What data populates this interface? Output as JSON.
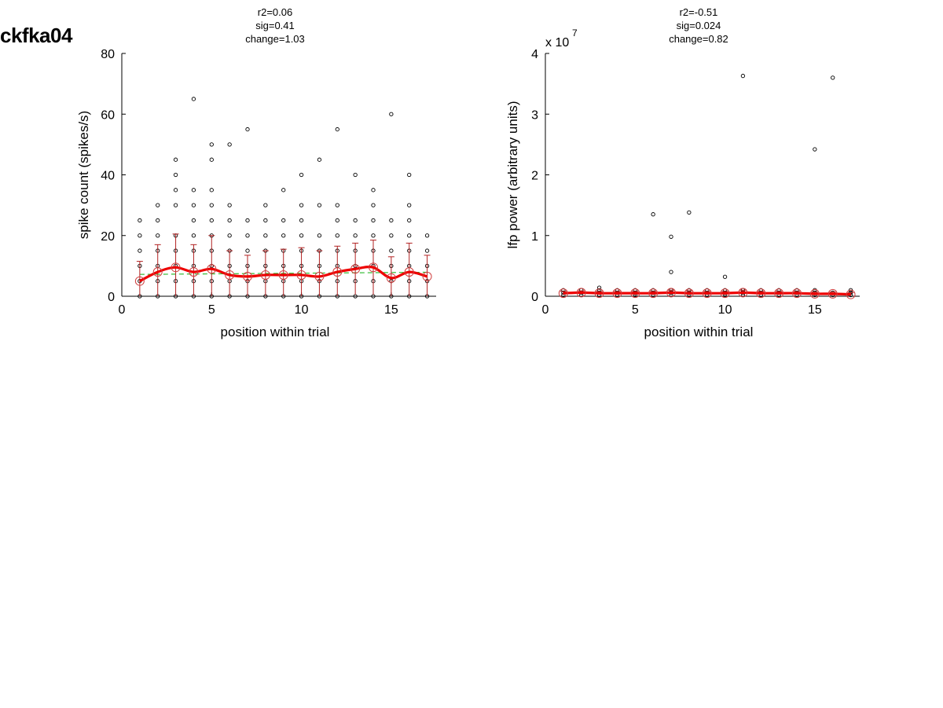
{
  "figure_title": "ckfka04",
  "colors": {
    "points": "#000000",
    "mean_line": "#ee0000",
    "error_bars": "#b22222",
    "mean_markers": "#d04040",
    "trend_line": "#33bb33"
  },
  "chart_data": [
    {
      "type": "scatter",
      "title_lines": [
        "r2=0.06",
        "sig=0.41",
        "change=1.03"
      ],
      "xlabel": "position within trial",
      "ylabel": "spike count (spikes/s)",
      "xlim": [
        0,
        17.5
      ],
      "ylim": [
        0,
        80
      ],
      "xticks": [
        0,
        5,
        10,
        15
      ],
      "yticks": [
        0,
        20,
        40,
        60,
        80
      ],
      "grid": false,
      "trend_line": [
        [
          1,
          7.2
        ],
        [
          17,
          7.9
        ]
      ],
      "mean": [
        {
          "x": 1,
          "y": 5,
          "err": 6.5
        },
        {
          "x": 2,
          "y": 8,
          "err": 9
        },
        {
          "x": 3,
          "y": 9.5,
          "err": 11
        },
        {
          "x": 4,
          "y": 8,
          "err": 9
        },
        {
          "x": 5,
          "y": 9,
          "err": 11
        },
        {
          "x": 6,
          "y": 7,
          "err": 8
        },
        {
          "x": 7,
          "y": 6.5,
          "err": 7
        },
        {
          "x": 8,
          "y": 7,
          "err": 8
        },
        {
          "x": 9,
          "y": 7,
          "err": 8.5
        },
        {
          "x": 10,
          "y": 7,
          "err": 9
        },
        {
          "x": 11,
          "y": 6.5,
          "err": 8.5
        },
        {
          "x": 12,
          "y": 8,
          "err": 8.5
        },
        {
          "x": 13,
          "y": 9,
          "err": 8.5
        },
        {
          "x": 14,
          "y": 9.5,
          "err": 9
        },
        {
          "x": 15,
          "y": 6,
          "err": 7
        },
        {
          "x": 16,
          "y": 8,
          "err": 9.5
        },
        {
          "x": 17,
          "y": 6.5,
          "err": 7
        }
      ],
      "points": [
        {
          "x": 1,
          "values": [
            0,
            5,
            10,
            15,
            20,
            25
          ]
        },
        {
          "x": 2,
          "values": [
            0,
            5,
            10,
            15,
            20,
            25,
            30
          ]
        },
        {
          "x": 3,
          "values": [
            0,
            5,
            10,
            15,
            20,
            30,
            35,
            40,
            45
          ]
        },
        {
          "x": 4,
          "values": [
            0,
            5,
            10,
            15,
            20,
            25,
            30,
            35,
            65
          ]
        },
        {
          "x": 5,
          "values": [
            0,
            5,
            10,
            15,
            20,
            25,
            30,
            35,
            45,
            50
          ]
        },
        {
          "x": 6,
          "values": [
            0,
            5,
            10,
            15,
            20,
            25,
            30,
            50
          ]
        },
        {
          "x": 7,
          "values": [
            0,
            5,
            10,
            15,
            20,
            25,
            55
          ]
        },
        {
          "x": 8,
          "values": [
            0,
            5,
            10,
            15,
            20,
            25,
            30
          ]
        },
        {
          "x": 9,
          "values": [
            0,
            5,
            10,
            15,
            20,
            25,
            35
          ]
        },
        {
          "x": 10,
          "values": [
            0,
            5,
            10,
            15,
            20,
            25,
            30,
            40
          ]
        },
        {
          "x": 11,
          "values": [
            0,
            5,
            10,
            15,
            20,
            30,
            45
          ]
        },
        {
          "x": 12,
          "values": [
            0,
            5,
            10,
            15,
            20,
            25,
            30,
            55
          ]
        },
        {
          "x": 13,
          "values": [
            0,
            5,
            10,
            15,
            20,
            25,
            40
          ]
        },
        {
          "x": 14,
          "values": [
            0,
            5,
            10,
            15,
            20,
            25,
            30,
            35
          ]
        },
        {
          "x": 15,
          "values": [
            0,
            5,
            10,
            15,
            20,
            25,
            60
          ]
        },
        {
          "x": 16,
          "values": [
            0,
            5,
            10,
            15,
            20,
            25,
            30,
            40
          ]
        },
        {
          "x": 17,
          "values": [
            0,
            5,
            10,
            15,
            20
          ]
        }
      ]
    },
    {
      "type": "scatter",
      "title_lines": [
        "r2=-0.51",
        "sig=0.024",
        "change=0.82"
      ],
      "xlabel": "position within trial",
      "ylabel": "lfp power (arbitrary units)",
      "exponent_label": "x 10",
      "exponent_power": "7",
      "xlim": [
        0,
        17.5
      ],
      "ylim": [
        0,
        4
      ],
      "xticks": [
        0,
        5,
        10,
        15
      ],
      "yticks": [
        0,
        1,
        2,
        3,
        4
      ],
      "grid": false,
      "trend_line": [
        [
          1,
          0.06
        ],
        [
          17,
          0.04
        ]
      ],
      "mean": [
        {
          "x": 1,
          "y": 0.05,
          "err": 0.03
        },
        {
          "x": 2,
          "y": 0.06,
          "err": 0.03
        },
        {
          "x": 3,
          "y": 0.05,
          "err": 0.03
        },
        {
          "x": 4,
          "y": 0.05,
          "err": 0.03
        },
        {
          "x": 5,
          "y": 0.05,
          "err": 0.03
        },
        {
          "x": 6,
          "y": 0.05,
          "err": 0.03
        },
        {
          "x": 7,
          "y": 0.06,
          "err": 0.04
        },
        {
          "x": 8,
          "y": 0.05,
          "err": 0.04
        },
        {
          "x": 9,
          "y": 0.05,
          "err": 0.03
        },
        {
          "x": 10,
          "y": 0.05,
          "err": 0.03
        },
        {
          "x": 11,
          "y": 0.06,
          "err": 0.04
        },
        {
          "x": 12,
          "y": 0.05,
          "err": 0.03
        },
        {
          "x": 13,
          "y": 0.05,
          "err": 0.03
        },
        {
          "x": 14,
          "y": 0.05,
          "err": 0.03
        },
        {
          "x": 15,
          "y": 0.04,
          "err": 0.03
        },
        {
          "x": 16,
          "y": 0.04,
          "err": 0.03
        },
        {
          "x": 17,
          "y": 0.03,
          "err": 0.03
        }
      ],
      "points": [
        {
          "x": 1,
          "values": [
            0.02,
            0.06,
            0.1
          ]
        },
        {
          "x": 2,
          "values": [
            0.02,
            0.06,
            0.1
          ]
        },
        {
          "x": 3,
          "values": [
            0.02,
            0.06,
            0.1,
            0.14
          ]
        },
        {
          "x": 4,
          "values": [
            0.02,
            0.06,
            0.1
          ]
        },
        {
          "x": 5,
          "values": [
            0.02,
            0.06,
            0.1
          ]
        },
        {
          "x": 6,
          "values": [
            0.02,
            0.06,
            0.1,
            1.35
          ]
        },
        {
          "x": 7,
          "values": [
            0.02,
            0.06,
            0.1,
            0.4,
            0.98
          ]
        },
        {
          "x": 8,
          "values": [
            0.02,
            0.06,
            0.1,
            1.38
          ]
        },
        {
          "x": 9,
          "values": [
            0.02,
            0.06,
            0.1
          ]
        },
        {
          "x": 10,
          "values": [
            0.02,
            0.06,
            0.1,
            0.32
          ]
        },
        {
          "x": 11,
          "values": [
            0.02,
            0.06,
            0.1,
            3.63
          ]
        },
        {
          "x": 12,
          "values": [
            0.02,
            0.06,
            0.1
          ]
        },
        {
          "x": 13,
          "values": [
            0.02,
            0.06,
            0.1
          ]
        },
        {
          "x": 14,
          "values": [
            0.02,
            0.06,
            0.1
          ]
        },
        {
          "x": 15,
          "values": [
            0.02,
            0.06,
            0.1,
            2.42
          ]
        },
        {
          "x": 16,
          "values": [
            0.02,
            0.06,
            3.6
          ]
        },
        {
          "x": 17,
          "values": [
            0.02,
            0.06,
            0.1
          ]
        }
      ]
    }
  ]
}
